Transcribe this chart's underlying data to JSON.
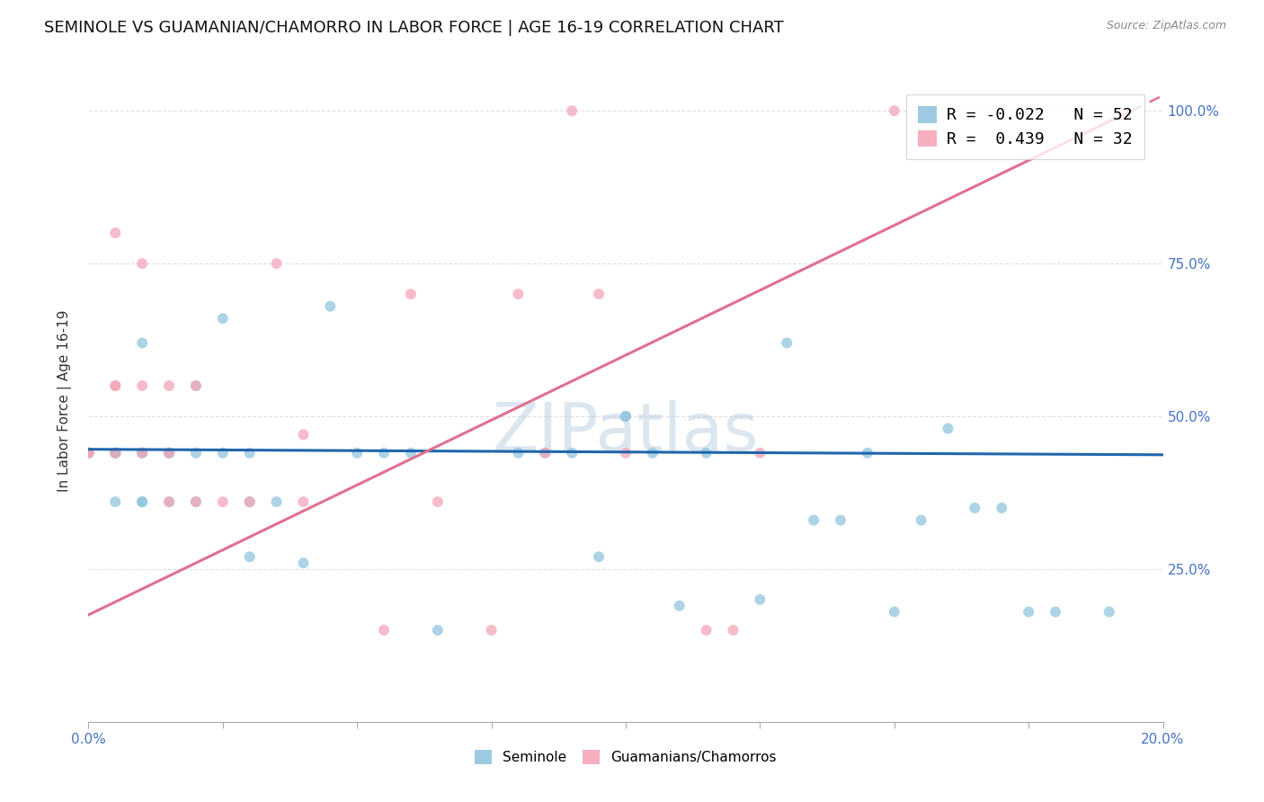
{
  "title": "SEMINOLE VS GUAMANIAN/CHAMORRO IN LABOR FORCE | AGE 16-19 CORRELATION CHART",
  "source": "Source: ZipAtlas.com",
  "ylabel": "In Labor Force | Age 16-19",
  "xlim": [
    0.0,
    0.2
  ],
  "ylim": [
    0.0,
    1.05
  ],
  "ytick_vals": [
    0.0,
    0.25,
    0.5,
    0.75,
    1.0
  ],
  "ytick_labels": [
    "",
    "25.0%",
    "50.0%",
    "75.0%",
    "100.0%"
  ],
  "xtick_vals": [
    0.0,
    0.025,
    0.05,
    0.075,
    0.1,
    0.125,
    0.15,
    0.175,
    0.2
  ],
  "seminole_color": "#92c5de",
  "guamanian_color": "#f4a6b8",
  "seminole_line_color": "#2166ac",
  "guamanian_line_color": "#e07090",
  "seminole_R": "-0.022",
  "seminole_N": "52",
  "guamanian_R": "0.439",
  "guamanian_N": "32",
  "legend_label_1": "Seminole",
  "legend_label_2": "Guamanians/Chamorros",
  "watermark": "ZIPatlas",
  "seminole_x": [
    0.0,
    0.0,
    0.0,
    0.005,
    0.005,
    0.005,
    0.005,
    0.01,
    0.01,
    0.01,
    0.01,
    0.01,
    0.015,
    0.015,
    0.015,
    0.02,
    0.02,
    0.02,
    0.025,
    0.025,
    0.03,
    0.03,
    0.03,
    0.035,
    0.04,
    0.045,
    0.05,
    0.055,
    0.06,
    0.065,
    0.08,
    0.085,
    0.09,
    0.095,
    0.1,
    0.1,
    0.105,
    0.11,
    0.115,
    0.125,
    0.13,
    0.135,
    0.14,
    0.145,
    0.15,
    0.155,
    0.16,
    0.165,
    0.17,
    0.175,
    0.18,
    0.19
  ],
  "seminole_y": [
    0.44,
    0.44,
    0.44,
    0.44,
    0.44,
    0.36,
    0.44,
    0.62,
    0.44,
    0.44,
    0.36,
    0.36,
    0.44,
    0.44,
    0.36,
    0.55,
    0.44,
    0.36,
    0.66,
    0.44,
    0.44,
    0.36,
    0.27,
    0.36,
    0.26,
    0.68,
    0.44,
    0.44,
    0.44,
    0.15,
    0.44,
    0.44,
    0.44,
    0.27,
    0.5,
    0.5,
    0.44,
    0.19,
    0.44,
    0.2,
    0.62,
    0.33,
    0.33,
    0.44,
    0.18,
    0.33,
    0.48,
    0.35,
    0.35,
    0.18,
    0.18,
    0.18
  ],
  "guamanian_x": [
    0.0,
    0.0,
    0.005,
    0.005,
    0.005,
    0.005,
    0.01,
    0.01,
    0.01,
    0.015,
    0.015,
    0.015,
    0.02,
    0.02,
    0.025,
    0.03,
    0.035,
    0.04,
    0.04,
    0.055,
    0.06,
    0.065,
    0.075,
    0.08,
    0.085,
    0.09,
    0.095,
    0.1,
    0.115,
    0.12,
    0.125,
    0.15
  ],
  "guamanian_y": [
    0.44,
    0.44,
    0.8,
    0.55,
    0.55,
    0.44,
    0.75,
    0.55,
    0.44,
    0.55,
    0.44,
    0.36,
    0.55,
    0.36,
    0.36,
    0.36,
    0.75,
    0.47,
    0.36,
    0.15,
    0.7,
    0.36,
    0.15,
    0.7,
    0.44,
    1.0,
    0.7,
    0.44,
    0.15,
    0.15,
    0.44,
    1.0
  ],
  "seminole_trend_x0": 0.0,
  "seminole_trend_x1": 0.2,
  "seminole_trend_y0": 0.446,
  "seminole_trend_y1": 0.437,
  "guamanian_trend_x0": 0.0,
  "guamanian_trend_x1": 0.2,
  "guamanian_trend_y0": 0.175,
  "guamanian_trend_y1": 1.025,
  "background_color": "#ffffff",
  "grid_color": "#e0e0e0",
  "title_fontsize": 13,
  "axis_label_fontsize": 11,
  "tick_fontsize": 11,
  "marker_size": 75
}
